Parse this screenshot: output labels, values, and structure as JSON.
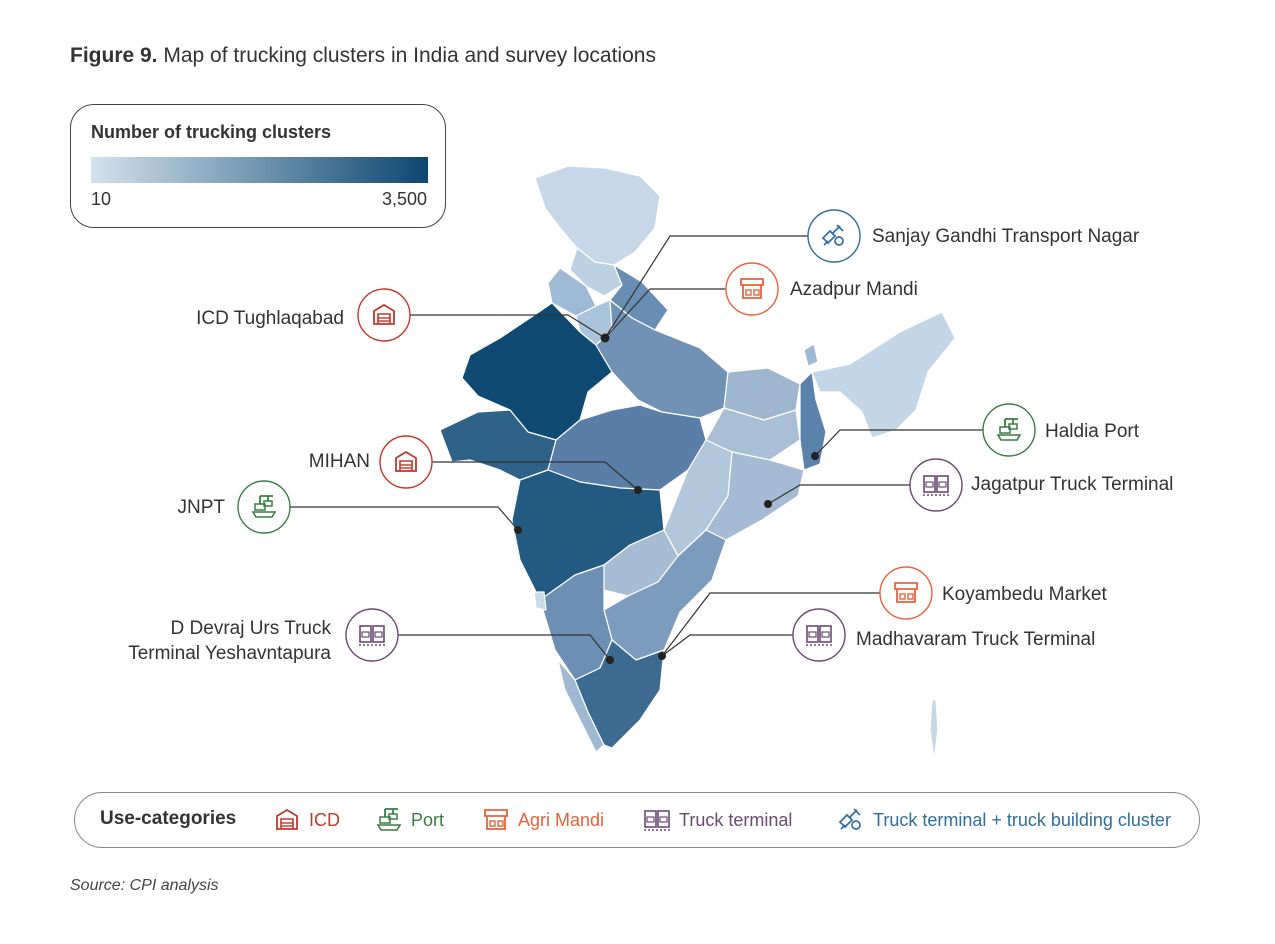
{
  "title": {
    "bold": "Figure 9.",
    "text": " Map of trucking clusters in India and survey locations"
  },
  "legend": {
    "title": "Number of trucking clusters",
    "min": "10",
    "max": "3,500",
    "color_low": "#d3e2ee",
    "color_high": "#0d4670"
  },
  "locations": [
    {
      "label": "Sanjay Gandhi Transport Nagar",
      "category": "truck-terminal-building"
    },
    {
      "label": "Azadpur Mandi",
      "category": "agri-mandi"
    },
    {
      "label": "ICD Tughlaqabad",
      "category": "icd"
    },
    {
      "label": "Haldia Port",
      "category": "port"
    },
    {
      "label": "MIHAN",
      "category": "icd"
    },
    {
      "label": "Jagatpur Truck Terminal",
      "category": "truck-terminal"
    },
    {
      "label": "JNPT",
      "category": "port"
    },
    {
      "label": "Koyambedu Market",
      "category": "agri-mandi"
    },
    {
      "label": "D Devraj Urs Truck",
      "label2": "Terminal Yeshavntapura",
      "category": "truck-terminal"
    },
    {
      "label": "Madhavaram Truck Terminal",
      "category": "truck-terminal"
    }
  ],
  "categories": {
    "title": "Use-categories",
    "items": [
      {
        "label": "ICD",
        "color": "#c0392b"
      },
      {
        "label": "Port",
        "color": "#3a7d44"
      },
      {
        "label": "Agri Mandi",
        "color": "#e8623a"
      },
      {
        "label": "Truck terminal",
        "color": "#6b4a72"
      },
      {
        "label": "Truck terminal + truck building cluster",
        "color": "#2f6f9f"
      }
    ]
  },
  "source": "Source: CPI analysis"
}
